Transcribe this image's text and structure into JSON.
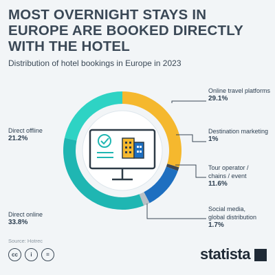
{
  "header": {
    "title": "MOST OVERNIGHT STAYS IN EUROPE ARE BOOKED DIRECTLY WITH THE HOTEL",
    "subtitle": "Distribution of hotel bookings in Europe in 2023"
  },
  "chart_data": {
    "type": "pie",
    "title": "MOST OVERNIGHT STAYS IN EUROPE ARE BOOKED DIRECTLY WITH THE HOTEL",
    "subtitle": "Distribution of hotel bookings in Europe in 2023",
    "donut": true,
    "slices": [
      {
        "label": "Online travel platforms",
        "value": 29.1,
        "value_label": "29.1%",
        "color": "#f5b82e"
      },
      {
        "label": "Destination marketing",
        "value": 1,
        "value_label": "1%",
        "color": "#3d4650"
      },
      {
        "label": "Tour operator / chains / event",
        "value": 11.6,
        "value_label": "11.6%",
        "color": "#1e6fc0"
      },
      {
        "label": "Social media, global distribution",
        "value": 1.7,
        "value_label": "1.7%",
        "color": "#b8c0c6"
      },
      {
        "label": "Direct online",
        "value": 33.8,
        "value_label": "33.8%",
        "color": "#1fb6b2"
      },
      {
        "label": "Direct offline",
        "value": 21.2,
        "value_label": "21.2%",
        "color": "#2ed3c4"
      }
    ]
  },
  "labels": {
    "online_travel_1": "Online travel platforms",
    "dest_1": "Destination marketing",
    "tour_1": "Tour operator /",
    "tour_2": "chains / event",
    "social_1": "Social media,",
    "social_2": "global distribution",
    "direct_online": "Direct online",
    "direct_offline": "Direct offline"
  },
  "footer": {
    "source": "Source: Hotrec",
    "cc_icons": [
      "cc-icon",
      "by-icon",
      "nd-icon"
    ],
    "cc_glyphs": [
      "cc",
      "i",
      "="
    ],
    "brand": "statista"
  },
  "colors": {
    "accent": "#f5b82e",
    "brand": "#1f2a36",
    "leader": "#3a4856"
  }
}
